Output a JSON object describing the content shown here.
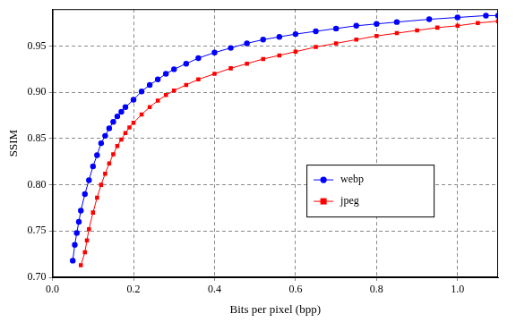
{
  "chart_data": {
    "type": "line",
    "x_label": "Bits per pixel (bpp)",
    "y_label": "SSIM",
    "xlim": [
      0,
      1.1
    ],
    "ylim": [
      0.7,
      0.99
    ],
    "xticks": [
      {
        "value": 0,
        "label": "0.0"
      },
      0.2,
      0.4,
      0.6,
      0.8,
      {
        "value": 1,
        "label": "1.0"
      }
    ],
    "yticks": [
      {
        "value": 0.7,
        "label": "0.70"
      },
      0.75,
      {
        "value": 0.8,
        "label": "0.80"
      },
      0.85,
      {
        "value": 0.9,
        "label": "0.90"
      },
      0.95
    ],
    "grid": true,
    "legend": "right",
    "series": [
      {
        "name": "webp",
        "color": "#0000ff",
        "marker": "circle",
        "x": [
          0.05,
          0.055,
          0.06,
          0.065,
          0.07,
          0.08,
          0.09,
          0.1,
          0.11,
          0.12,
          0.13,
          0.14,
          0.15,
          0.16,
          0.17,
          0.18,
          0.2,
          0.22,
          0.24,
          0.26,
          0.28,
          0.3,
          0.33,
          0.36,
          0.4,
          0.44,
          0.48,
          0.52,
          0.56,
          0.6,
          0.65,
          0.7,
          0.75,
          0.8,
          0.85,
          0.93,
          1.0,
          1.07,
          1.1
        ],
        "values": [
          0.718,
          0.735,
          0.748,
          0.76,
          0.772,
          0.79,
          0.805,
          0.82,
          0.832,
          0.845,
          0.853,
          0.861,
          0.868,
          0.874,
          0.879,
          0.884,
          0.892,
          0.901,
          0.908,
          0.914,
          0.92,
          0.925,
          0.931,
          0.937,
          0.943,
          0.948,
          0.953,
          0.957,
          0.96,
          0.963,
          0.966,
          0.969,
          0.972,
          0.974,
          0.976,
          0.979,
          0.981,
          0.983,
          0.983
        ]
      },
      {
        "name": "jpeg",
        "color": "#ff0000",
        "marker": "square",
        "x": [
          0.07,
          0.08,
          0.085,
          0.09,
          0.1,
          0.11,
          0.12,
          0.13,
          0.14,
          0.15,
          0.16,
          0.17,
          0.18,
          0.19,
          0.2,
          0.22,
          0.24,
          0.26,
          0.28,
          0.3,
          0.33,
          0.36,
          0.4,
          0.44,
          0.48,
          0.52,
          0.56,
          0.6,
          0.65,
          0.7,
          0.75,
          0.8,
          0.85,
          0.9,
          0.95,
          1.0,
          1.05,
          1.1
        ],
        "values": [
          0.713,
          0.727,
          0.74,
          0.752,
          0.77,
          0.786,
          0.8,
          0.812,
          0.823,
          0.833,
          0.842,
          0.849,
          0.856,
          0.862,
          0.867,
          0.876,
          0.884,
          0.891,
          0.897,
          0.902,
          0.908,
          0.914,
          0.92,
          0.926,
          0.931,
          0.936,
          0.94,
          0.944,
          0.949,
          0.953,
          0.957,
          0.961,
          0.964,
          0.967,
          0.97,
          0.972,
          0.975,
          0.977
        ]
      }
    ]
  }
}
